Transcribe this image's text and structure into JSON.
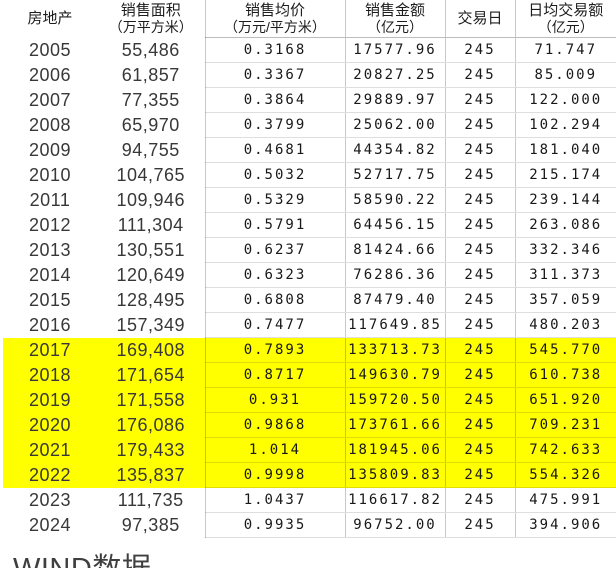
{
  "table": {
    "columns": [
      {
        "key": "year",
        "label": "房地产",
        "label2": ""
      },
      {
        "key": "area",
        "label": "销售面积",
        "label2": "（万平方米）"
      },
      {
        "key": "price",
        "label": "销售均价",
        "label2": "（万元/平方米）"
      },
      {
        "key": "amount",
        "label": "销售金额",
        "label2": "（亿元）"
      },
      {
        "key": "days",
        "label": "交易日",
        "label2": ""
      },
      {
        "key": "daily",
        "label": "日均交易额",
        "label2": "（亿元）"
      }
    ],
    "highlight_color": "#ffff00",
    "highlighted_years": [
      "2017",
      "2018",
      "2019",
      "2020",
      "2021",
      "2022"
    ],
    "rows": [
      {
        "year": "2005",
        "area": "55,486",
        "price": "0.3168",
        "amount": "17577.96",
        "days": "245",
        "daily": "71.747"
      },
      {
        "year": "2006",
        "area": "61,857",
        "price": "0.3367",
        "amount": "20827.25",
        "days": "245",
        "daily": "85.009"
      },
      {
        "year": "2007",
        "area": "77,355",
        "price": "0.3864",
        "amount": "29889.97",
        "days": "245",
        "daily": "122.000"
      },
      {
        "year": "2008",
        "area": "65,970",
        "price": "0.3799",
        "amount": "25062.00",
        "days": "245",
        "daily": "102.294"
      },
      {
        "year": "2009",
        "area": "94,755",
        "price": "0.4681",
        "amount": "44354.82",
        "days": "245",
        "daily": "181.040"
      },
      {
        "year": "2010",
        "area": "104,765",
        "price": "0.5032",
        "amount": "52717.75",
        "days": "245",
        "daily": "215.174"
      },
      {
        "year": "2011",
        "area": "109,946",
        "price": "0.5329",
        "amount": "58590.22",
        "days": "245",
        "daily": "239.144"
      },
      {
        "year": "2012",
        "area": "111,304",
        "price": "0.5791",
        "amount": "64456.15",
        "days": "245",
        "daily": "263.086"
      },
      {
        "year": "2013",
        "area": "130,551",
        "price": "0.6237",
        "amount": "81424.66",
        "days": "245",
        "daily": "332.346"
      },
      {
        "year": "2014",
        "area": "120,649",
        "price": "0.6323",
        "amount": "76286.36",
        "days": "245",
        "daily": "311.373"
      },
      {
        "year": "2015",
        "area": "128,495",
        "price": "0.6808",
        "amount": "87479.40",
        "days": "245",
        "daily": "357.059"
      },
      {
        "year": "2016",
        "area": "157,349",
        "price": "0.7477",
        "amount": "117649.85",
        "days": "245",
        "daily": "480.203"
      },
      {
        "year": "2017",
        "area": "169,408",
        "price": "0.7893",
        "amount": "133713.73",
        "days": "245",
        "daily": "545.770"
      },
      {
        "year": "2018",
        "area": "171,654",
        "price": "0.8717",
        "amount": "149630.79",
        "days": "245",
        "daily": "610.738"
      },
      {
        "year": "2019",
        "area": "171,558",
        "price": "0.931",
        "amount": "159720.50",
        "days": "245",
        "daily": "651.920"
      },
      {
        "year": "2020",
        "area": "176,086",
        "price": "0.9868",
        "amount": "173761.66",
        "days": "245",
        "daily": "709.231"
      },
      {
        "year": "2021",
        "area": "179,433",
        "price": "1.014",
        "amount": "181945.06",
        "days": "245",
        "daily": "742.633"
      },
      {
        "year": "2022",
        "area": "135,837",
        "price": "0.9998",
        "amount": "135809.83",
        "days": "245",
        "daily": "554.326"
      },
      {
        "year": "2023",
        "area": "111,735",
        "price": "1.0437",
        "amount": "116617.82",
        "days": "245",
        "daily": "475.991"
      },
      {
        "year": "2024",
        "area": "97,385",
        "price": "0.9935",
        "amount": "96752.00",
        "days": "245",
        "daily": "394.906"
      }
    ]
  },
  "footer": {
    "source_label": "WIND数据"
  }
}
